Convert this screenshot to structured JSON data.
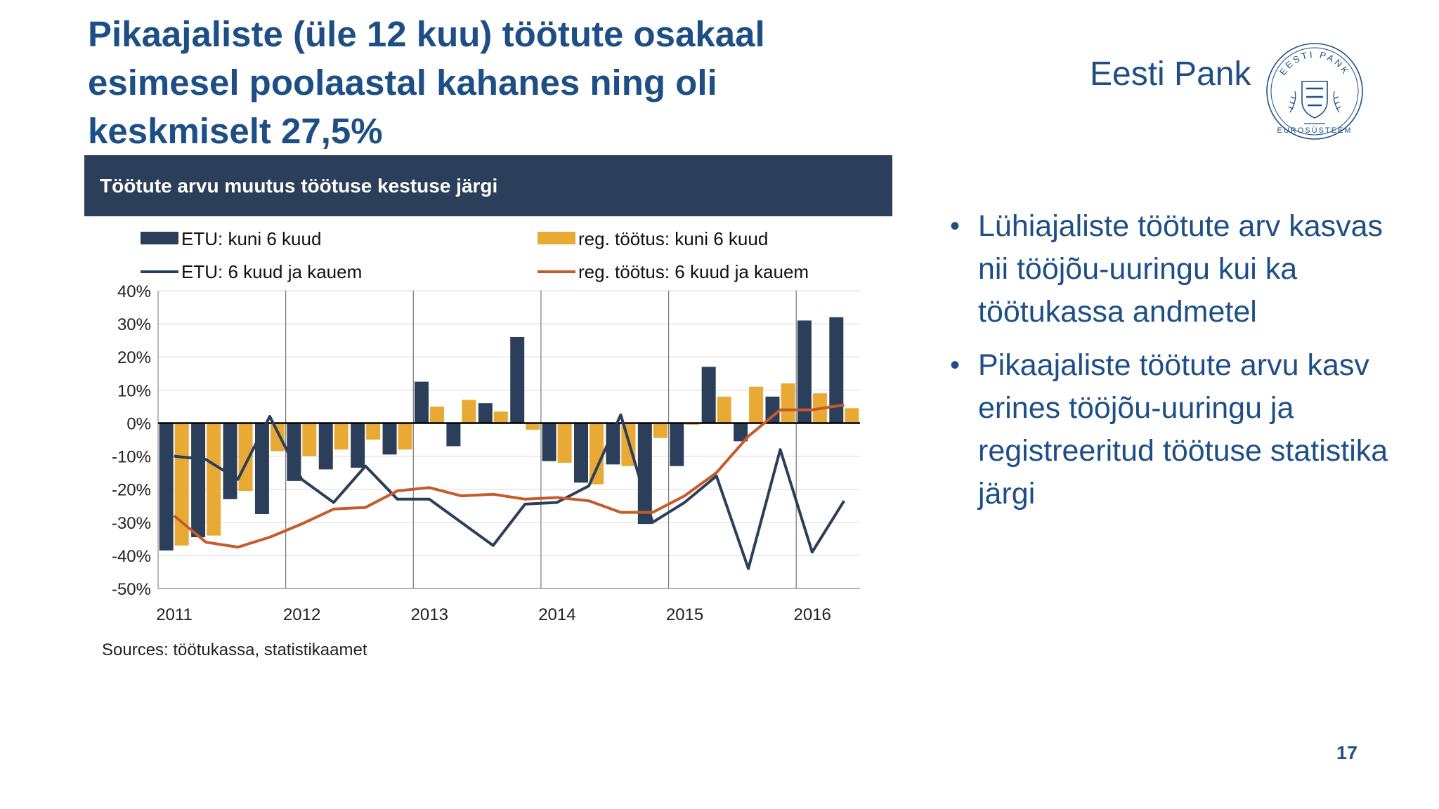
{
  "slide": {
    "title_lines": [
      "Pikaajaliste (üle 12 kuu) töötute osakaal",
      "esimesel  poolaastal kahanes ning oli",
      "keskmiselt 27,5%"
    ],
    "brand": "Eesti Pank",
    "seal_top_text": "EESTI PANK",
    "seal_bottom_text": "EUROSÜSTEEM",
    "chart_header": "Töötute arvu muutus töötuse kestuse järgi",
    "source": "Sources: töötukassa, statistikaamet",
    "bullets": [
      "Lühiajaliste töötute arv kasvas nii tööjõu-uuringu kui ka töötukassa andmetel",
      "Pikaajaliste töötute arvu kasv erines tööjõu-uuringu ja registreeritud töötuse statistika järgi"
    ],
    "page_number": "17"
  },
  "colors": {
    "title": "#1d4f86",
    "header_bg": "#2c3f5a",
    "etu": "#2c3f5a",
    "reg": "#e8a935",
    "reg_line": "#c55a2a"
  },
  "chart_data": {
    "type": "bar+line",
    "title": "Töötute arvu muutus töötuse kestuse järgi",
    "ylim": [
      -50,
      40
    ],
    "yticks": [
      40,
      30,
      20,
      10,
      0,
      -10,
      -20,
      -30,
      -40,
      -50
    ],
    "ytick_labels": [
      "40%",
      "30%",
      "20%",
      "10%",
      "0%",
      "-10%",
      "-20%",
      "-30%",
      "-40%",
      "-50%"
    ],
    "year_labels": [
      "2011",
      "2012",
      "2013",
      "2014",
      "2015",
      "2016"
    ],
    "periods_per_year": 4,
    "n_periods": 22,
    "grid": true,
    "legend_placement": "top",
    "series": [
      {
        "name": "ETU: kuni 6 kuud",
        "kind": "bar",
        "color": "#2c3f5a",
        "values": [
          -38.5,
          -34.5,
          -23,
          -27.5,
          -17.5,
          -14,
          -13.5,
          -9.5,
          12.5,
          -7,
          6,
          26,
          -11.5,
          -18,
          -12.5,
          -30.5,
          -13,
          17,
          -5.5,
          8,
          31,
          32
        ]
      },
      {
        "name": "reg. töötus: kuni 6 kuud",
        "kind": "bar",
        "color": "#e8a935",
        "values": [
          -37,
          -34,
          -20.5,
          -8.5,
          -10,
          -8,
          -5,
          -8,
          5,
          7,
          3.5,
          -2,
          -12,
          -18.5,
          -13,
          -4.5,
          -0.5,
          8,
          11,
          12,
          9,
          4.5
        ]
      },
      {
        "name": "ETU: 6 kuud ja kauem",
        "kind": "line",
        "color": "#2c3f5a",
        "values": [
          -10,
          -11,
          -17,
          2,
          -17,
          -24,
          -13,
          -23,
          -23,
          -30,
          -37,
          -24.5,
          -24,
          -19,
          2.5,
          -30,
          -24,
          -16,
          -44,
          -8,
          -39,
          -23.5
        ]
      },
      {
        "name": "reg. töötus: 6 kuud ja kauem",
        "kind": "line",
        "color": "#c55a2a",
        "values": [
          -28,
          -36,
          -37.5,
          -34.5,
          -30.5,
          -26,
          -25.5,
          -20.5,
          -19.5,
          -22,
          -21.5,
          -23,
          -22.5,
          -23.5,
          -27,
          -27,
          -22,
          -15,
          -4,
          4,
          4,
          5.5
        ]
      }
    ]
  }
}
